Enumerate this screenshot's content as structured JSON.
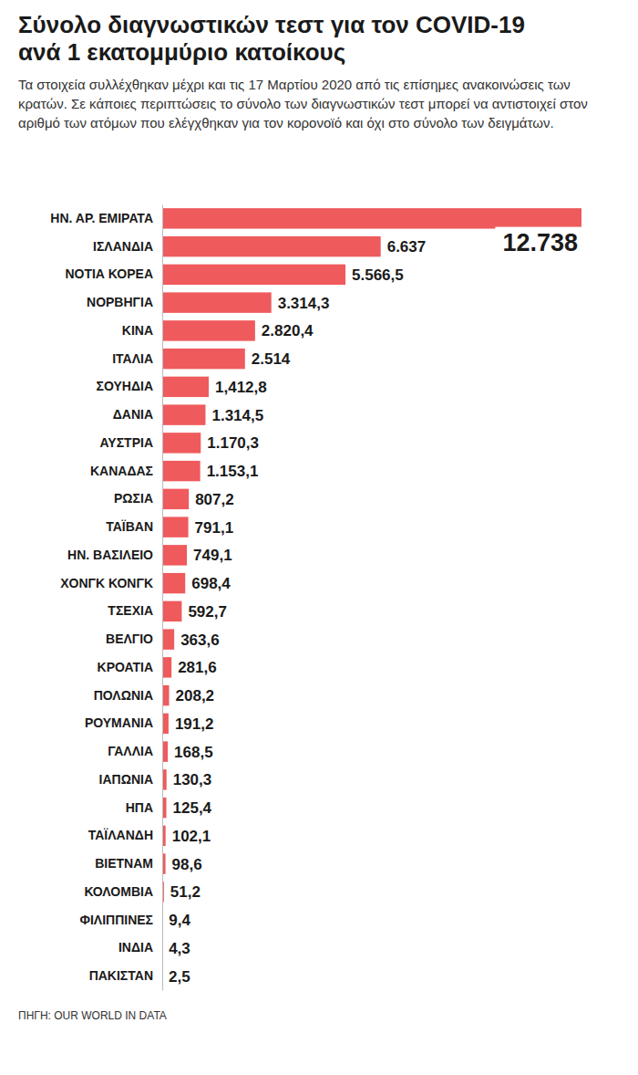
{
  "chart_data": {
    "type": "bar",
    "orientation": "horizontal",
    "title": "Σύνολο διαγνωστικών τεστ για τον COVID-19 ανά 1 εκατομμύριο κατοίκους",
    "subtitle": "Τα στοιχεία συλλέχθηκαν μέχρι και τις 17 Μαρτίου 2020 από τις επίσημες ανακοινώσεις των κρατών. Σε κάποιες περιπτώσεις το σύνολο των διαγνωστικών τεστ μπορεί να αντιστοιχεί στον αριθμό των ατόμων που ελέγχθηκαν για τον κορονοϊό και όχι στο σύνολο των δειγμάτων.",
    "source": "ΠΗΓΗ: OUR WORLD IN DATA",
    "categories": [
      "ΗΝ. ΑΡ. ΕΜΙΡΑΤΑ",
      "ΙΣΛΑΝΔΙΑ",
      "ΝΟΤΙΑ ΚΟΡΕΑ",
      "ΝΟΡΒΗΓΙΑ",
      "ΚΙΝΑ",
      "ΙΤΑΛΙΑ",
      "ΣΟΥΗΔΙΑ",
      "ΔΑΝΙΑ",
      "ΑΥΣΤΡΙΑ",
      "ΚΑΝΑΔΑΣ",
      "ΡΩΣΙΑ",
      "ΤΑΪΒΑΝ",
      "ΗΝ. ΒΑΣΙΛΕΙΟ",
      "ΧΟΝΓΚ ΚΟΝΓΚ",
      "ΤΣΕΧΙΑ",
      "ΒΕΛΓΙΟ",
      "ΚΡΟΑΤΙΑ",
      "ΠΟΛΩΝΙΑ",
      "ΡΟΥΜΑΝΙΑ",
      "ΓΑΛΛΙΑ",
      "ΙΑΠΩΝΙΑ",
      "ΗΠΑ",
      "ΤΑΪΛΑΝΔΗ",
      "ΒΙΕΤΝΑΜ",
      "ΚΟΛΟΜΒΙΑ",
      "ΦΙΛΙΠΠΙΝΕΣ",
      "ΙΝΔΙΑ",
      "ΠΑΚΙΣΤΑΝ"
    ],
    "values": [
      12738,
      6637,
      5566.5,
      3314.3,
      2820.4,
      2514,
      1412.8,
      1314.5,
      1170.3,
      1153.1,
      807.2,
      791.1,
      749.1,
      698.4,
      592.7,
      363.6,
      281.6,
      208.2,
      191.2,
      168.5,
      130.3,
      125.4,
      102.1,
      98.6,
      51.2,
      9.4,
      4.3,
      2.5
    ],
    "value_labels": [
      "12.738",
      "6.637",
      "5.566,5",
      "3.314,3",
      "2.820,4",
      "2.514",
      "1,412,8",
      "1.314,5",
      "1.170,3",
      "1.153,1",
      "807,2",
      "791,1",
      "749,1",
      "698,4",
      "592,7",
      "363,6",
      "281,6",
      "208,2",
      "191,2",
      "168,5",
      "130,3",
      "125,4",
      "102,1",
      "98,6",
      "51,2",
      "9,4",
      "4,3",
      "2,5"
    ],
    "color": "#ef5a5c",
    "xlim": [
      0,
      12738
    ],
    "data_labels": true,
    "tick_labels": "y",
    "grid": false
  }
}
